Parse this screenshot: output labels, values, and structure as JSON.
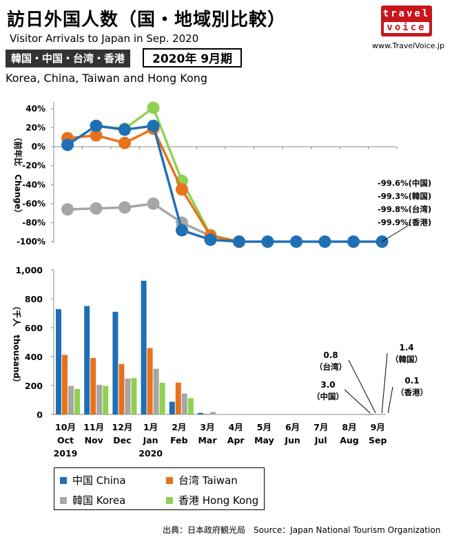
{
  "header": {
    "title": "訪日外国人数（国・地域別比較）",
    "subtitle": "Visitor Arrivals to Japan in Sep. 2020",
    "regions_label": "韓国・中国・台湾・香港",
    "period_label": "2020年 9月期",
    "regions_en": "Korea, China, Taiwan and Hong Kong",
    "logo_top": "travel",
    "logo_bottom": "voice",
    "site": "www.TravelVoice.jp"
  },
  "colors": {
    "China": "#1f6fb5",
    "Taiwan": "#e8721c",
    "Korea": "#a6a6a6",
    "Hong Kong": "#8fd150"
  },
  "legend": [
    {
      "name": "中国 China",
      "key": "China"
    },
    {
      "name": "台湾 Taiwan",
      "key": "Taiwan"
    },
    {
      "name": "韓国 Korea",
      "key": "Korea"
    },
    {
      "name": "香港 Hong Kong",
      "key": "Hong Kong"
    }
  ],
  "source": "出典：日本政府観光局　Source：Japan  National Tourism  Organization",
  "chart_data": [
    {
      "type": "line",
      "ylabel": "（前年比　Change）",
      "ylim": [
        -100,
        40
      ],
      "y_ticks": [
        "40%",
        "20%",
        "0%",
        "-20%",
        "-40%",
        "-60%",
        "-80%",
        "-100%"
      ],
      "grid": false,
      "x": [
        "10月 Oct 2019",
        "11月 Nov",
        "12月 Dec",
        "1月 Jan 2020",
        "2月 Feb",
        "3月 Mar",
        "4月 Apr",
        "5月 May",
        "6月 Jun",
        "7月 Jul",
        "8月 Aug",
        "9月 Sep"
      ],
      "series": [
        {
          "name": "韓国 Korea",
          "key": "Korea",
          "values": [
            -66,
            -65,
            -64,
            -60,
            -80,
            -94,
            -100,
            null,
            null,
            null,
            null,
            null
          ]
        },
        {
          "name": "香港 Hong Kong",
          "key": "Hong Kong",
          "values": [
            null,
            22,
            19,
            41,
            -36,
            -93,
            -100,
            null,
            null,
            null,
            null,
            null
          ]
        },
        {
          "name": "台湾 Taiwan",
          "key": "Taiwan",
          "values": [
            9,
            12,
            4,
            19,
            -45,
            -94,
            -100,
            null,
            null,
            null,
            null,
            null
          ]
        },
        {
          "name": "中国 China",
          "key": "China",
          "values": [
            2,
            22,
            18,
            22,
            -88,
            -98,
            -100,
            -100,
            -100,
            -100,
            -100,
            -100
          ]
        }
      ],
      "annotations": [
        "-99.6%(中国)",
        "-99.3%(韓国)",
        "-99.8%(台湾)",
        "-99.9%(香港)"
      ]
    },
    {
      "type": "bar",
      "ylabel": "（千人　thousand）",
      "ylim": [
        0,
        1000
      ],
      "y_ticks": [
        "1,000",
        "800",
        "600",
        "400",
        "200",
        "0"
      ],
      "grid": false,
      "categories": [
        {
          "jp": "10月",
          "en": "Oct",
          "year": "2019"
        },
        {
          "jp": "11月",
          "en": "Nov",
          "year": ""
        },
        {
          "jp": "12月",
          "en": "Dec",
          "year": ""
        },
        {
          "jp": "1月",
          "en": "Jan",
          "year": "2020"
        },
        {
          "jp": "2月",
          "en": "Feb",
          "year": ""
        },
        {
          "jp": "3月",
          "en": "Mar",
          "year": ""
        },
        {
          "jp": "4月",
          "en": "Apr",
          "year": ""
        },
        {
          "jp": "5月",
          "en": "May",
          "year": ""
        },
        {
          "jp": "6月",
          "en": "Jun",
          "year": ""
        },
        {
          "jp": "7月",
          "en": "Jul",
          "year": ""
        },
        {
          "jp": "8月",
          "en": "Aug",
          "year": ""
        },
        {
          "jp": "9月",
          "en": "Sep",
          "year": ""
        }
      ],
      "series": [
        {
          "name": "中国 China",
          "key": "China",
          "values": [
            728,
            750,
            710,
            925,
            88,
            11,
            0.2,
            0.1,
            0.1,
            0.2,
            0.4,
            3.0
          ]
        },
        {
          "name": "台湾 Taiwan",
          "key": "Taiwan",
          "values": [
            412,
            390,
            349,
            459,
            220,
            4,
            0.1,
            0.1,
            0.1,
            0.1,
            0.2,
            0.8
          ]
        },
        {
          "name": "韓国 Korea",
          "key": "Korea",
          "values": [
            197,
            205,
            249,
            316,
            144,
            17,
            0.1,
            0.1,
            0.1,
            0.2,
            0.3,
            1.4
          ]
        },
        {
          "name": "香港 Hong Kong",
          "key": "Hong Kong",
          "values": [
            176,
            197,
            252,
            219,
            113,
            1,
            0.1,
            0.1,
            0.1,
            0.1,
            0.1,
            0.1
          ]
        }
      ],
      "callouts": [
        {
          "value": "3.0",
          "label": "（中国）"
        },
        {
          "value": "0.8",
          "label": "（台湾）"
        },
        {
          "value": "1.4",
          "label": "（韓国）"
        },
        {
          "value": "0.1",
          "label": "（香港）"
        }
      ]
    }
  ]
}
